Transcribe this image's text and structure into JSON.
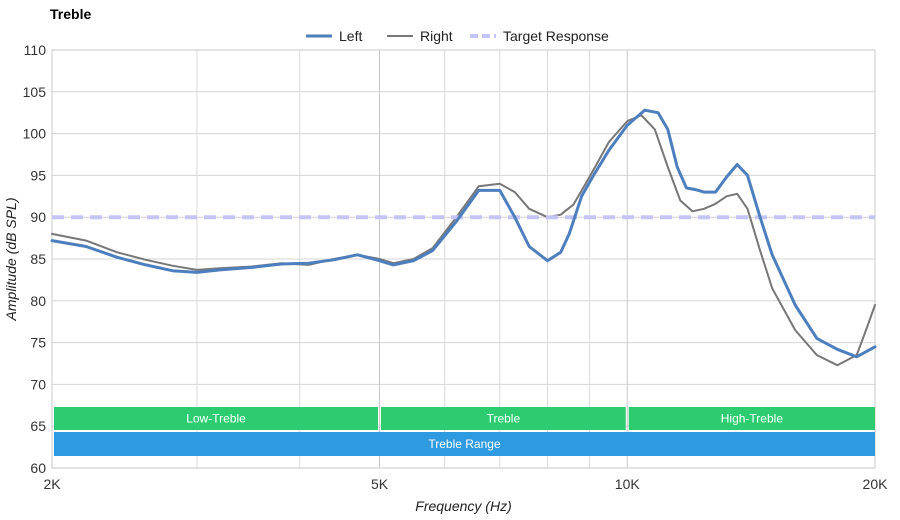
{
  "chart_data": {
    "type": "line",
    "title": "Treble",
    "xlabel": "Frequency (Hz)",
    "ylabel": "Amplitude (dB SPL)",
    "x_scale": "log",
    "xlim": [
      2000,
      20000
    ],
    "ylim": [
      60,
      110
    ],
    "x_ticks": [
      {
        "value": 2000,
        "label": "2K"
      },
      {
        "value": 5000,
        "label": "5K"
      },
      {
        "value": 10000,
        "label": "10K"
      },
      {
        "value": 20000,
        "label": "20K"
      }
    ],
    "x_minor": [
      3000,
      4000,
      6000,
      7000,
      8000,
      9000
    ],
    "y_ticks": [
      60,
      65,
      70,
      75,
      80,
      85,
      90,
      95,
      100,
      105,
      110
    ],
    "grid": true,
    "legend_position": "top-center",
    "series": [
      {
        "name": "Left",
        "color": "#4d7fbf",
        "style": "solid",
        "x": [
          2000,
          2200,
          2400,
          2600,
          2800,
          3000,
          3200,
          3500,
          3800,
          4100,
          4400,
          4700,
          5000,
          5200,
          5500,
          5800,
          6200,
          6600,
          7000,
          7300,
          7600,
          8000,
          8300,
          8500,
          8800,
          9100,
          9500,
          10000,
          10500,
          10900,
          11200,
          11500,
          11800,
          12100,
          12400,
          12800,
          13200,
          13600,
          14000,
          14500,
          15000,
          16000,
          17000,
          18000,
          19000,
          20000
        ],
        "y": [
          87.2,
          86.5,
          85.2,
          84.3,
          83.6,
          83.4,
          83.7,
          84.0,
          84.4,
          84.5,
          84.9,
          85.5,
          84.8,
          84.3,
          84.8,
          86.0,
          89.5,
          93.2,
          93.2,
          90.0,
          86.5,
          84.8,
          85.8,
          88.0,
          92.5,
          95.0,
          98.0,
          101.0,
          102.8,
          102.5,
          100.5,
          96.0,
          93.5,
          93.3,
          93.0,
          93.0,
          94.8,
          96.3,
          95.0,
          90.0,
          85.5,
          79.5,
          75.5,
          74.2,
          73.3,
          74.5
        ]
      },
      {
        "name": "Right",
        "color": "#777777",
        "style": "solid",
        "x": [
          2000,
          2200,
          2400,
          2600,
          2800,
          3000,
          3200,
          3500,
          3800,
          4100,
          4400,
          4700,
          5000,
          5200,
          5500,
          5800,
          6200,
          6600,
          7000,
          7300,
          7600,
          8000,
          8300,
          8600,
          8900,
          9200,
          9500,
          10000,
          10400,
          10800,
          11200,
          11600,
          12000,
          12400,
          12800,
          13200,
          13600,
          14000,
          14500,
          15000,
          16000,
          17000,
          18000,
          19000,
          19500,
          20000
        ],
        "y": [
          88.0,
          87.2,
          85.8,
          84.9,
          84.2,
          83.7,
          83.9,
          84.1,
          84.5,
          84.3,
          85.0,
          85.5,
          85.0,
          84.5,
          85.0,
          86.3,
          90.0,
          93.7,
          94.0,
          93.0,
          91.0,
          90.0,
          90.3,
          91.5,
          94.0,
          96.5,
          99.0,
          101.5,
          102.2,
          100.5,
          96.0,
          92.0,
          90.7,
          91.0,
          91.6,
          92.5,
          92.8,
          91.0,
          86.0,
          81.5,
          76.5,
          73.5,
          72.3,
          73.5,
          76.5,
          79.5
        ]
      },
      {
        "name": "Target Response",
        "color": "#c5c5f5",
        "style": "dashed",
        "x": [
          2000,
          20000
        ],
        "y": [
          90,
          90
        ]
      }
    ],
    "bands": [
      {
        "label": "Low-Treble",
        "x_start": 2000,
        "x_end": 5000,
        "color": "#2ecc71",
        "row": 1
      },
      {
        "label": "Treble",
        "x_start": 5000,
        "x_end": 10000,
        "color": "#2ecc71",
        "row": 1
      },
      {
        "label": "High-Treble",
        "x_start": 10000,
        "x_end": 20000,
        "color": "#2ecc71",
        "row": 1
      },
      {
        "label": "Treble Range",
        "x_start": 2000,
        "x_end": 20000,
        "color": "#2e9ae0",
        "row": 2
      }
    ]
  }
}
